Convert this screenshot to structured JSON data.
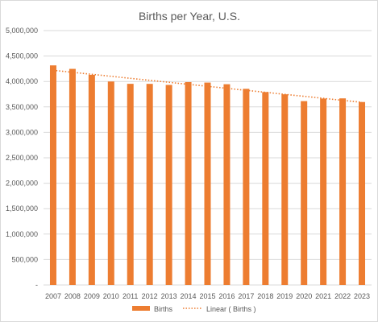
{
  "chart_data": {
    "type": "bar",
    "title": "Births per Year, U.S.",
    "xlabel": "",
    "ylabel": "",
    "categories": [
      "2007",
      "2008",
      "2009",
      "2010",
      "2011",
      "2012",
      "2013",
      "2014",
      "2015",
      "2016",
      "2017",
      "2018",
      "2019",
      "2020",
      "2021",
      "2022",
      "2023"
    ],
    "series": [
      {
        "name": "Births",
        "color": "#ed7d31",
        "values": [
          4316233,
          4247694,
          4130665,
          3999386,
          3953590,
          3952841,
          3932181,
          3988076,
          3978497,
          3945875,
          3855500,
          3791712,
          3747540,
          3613647,
          3664292,
          3667758,
          3596017
        ]
      }
    ],
    "trendline": {
      "name": "Linear ( Births )",
      "type": "linear",
      "color": "#ed7d31",
      "style": "dotted"
    },
    "ylim": [
      0,
      5000000
    ],
    "yticks": [
      "-",
      "500,000",
      "1,000,000",
      "1,500,000",
      "2,000,000",
      "2,500,000",
      "3,000,000",
      "3,500,000",
      "4,000,000",
      "4,500,000",
      "5,000,000"
    ],
    "grid": true,
    "legend_position": "bottom"
  }
}
